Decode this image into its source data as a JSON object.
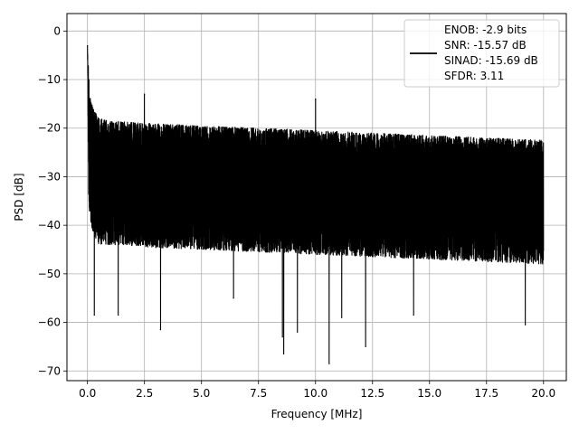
{
  "chart_data": {
    "type": "line",
    "title": "",
    "xlabel": "Frequency [MHz]",
    "ylabel": "PSD [dB]",
    "xlim": [
      -0.9,
      21.0
    ],
    "ylim": [
      -72.0,
      3.6
    ],
    "xticks": [
      0.0,
      2.5,
      5.0,
      7.5,
      10.0,
      12.5,
      15.0,
      17.5,
      20.0
    ],
    "xtick_labels": [
      "0.0",
      "2.5",
      "5.0",
      "7.5",
      "10.0",
      "12.5",
      "15.0",
      "17.5",
      "20.0"
    ],
    "yticks": [
      0,
      -10,
      -20,
      -30,
      -40,
      -50,
      -60,
      -70
    ],
    "ytick_labels": [
      "0",
      "−10",
      "−20",
      "−30",
      "−40",
      "−50",
      "−60",
      "−70"
    ],
    "grid": true,
    "legend_position": "top-right",
    "legend_lines": [
      "ENOB: -2.9 bits",
      "SNR: -15.57 dB",
      "SINAD: -15.69 dB",
      "SFDR: 3.11"
    ],
    "series": [
      {
        "color": "#000000",
        "x_range": [
          0.0,
          20.0
        ],
        "dc_peak": {
          "x": 0.0,
          "y": -3.0
        },
        "envelope": {
          "x": [
            0.0,
            0.05,
            0.1,
            0.25,
            0.5,
            1.0,
            2.5,
            5.0,
            7.5,
            10.0,
            12.5,
            15.0,
            17.5,
            20.0
          ],
          "upper": [
            -3.0,
            -8.0,
            -13.0,
            -16.0,
            -18.0,
            -18.5,
            -19.0,
            -19.5,
            -20.0,
            -20.5,
            -21.0,
            -21.5,
            -22.0,
            -22.5
          ],
          "lower": [
            -3.0,
            -34.0,
            -38.0,
            -42.0,
            -44.0,
            -44.0,
            -44.5,
            -45.0,
            -45.5,
            -46.0,
            -46.5,
            -47.0,
            -47.5,
            -48.0
          ]
        },
        "spurs": [
          {
            "x": 2.5,
            "y": -13.0
          },
          {
            "x": 10.0,
            "y": -14.0
          }
        ],
        "dips": [
          {
            "x": 0.3,
            "y": -58.5
          },
          {
            "x": 1.35,
            "y": -58.5
          },
          {
            "x": 3.2,
            "y": -61.5
          },
          {
            "x": 6.4,
            "y": -55.0
          },
          {
            "x": 8.55,
            "y": -63.0
          },
          {
            "x": 8.6,
            "y": -66.5
          },
          {
            "x": 9.2,
            "y": -62.0
          },
          {
            "x": 10.6,
            "y": -68.5
          },
          {
            "x": 11.15,
            "y": -59.0
          },
          {
            "x": 12.2,
            "y": -65.0
          },
          {
            "x": 14.3,
            "y": -58.5
          },
          {
            "x": 19.2,
            "y": -60.5
          }
        ]
      }
    ]
  }
}
